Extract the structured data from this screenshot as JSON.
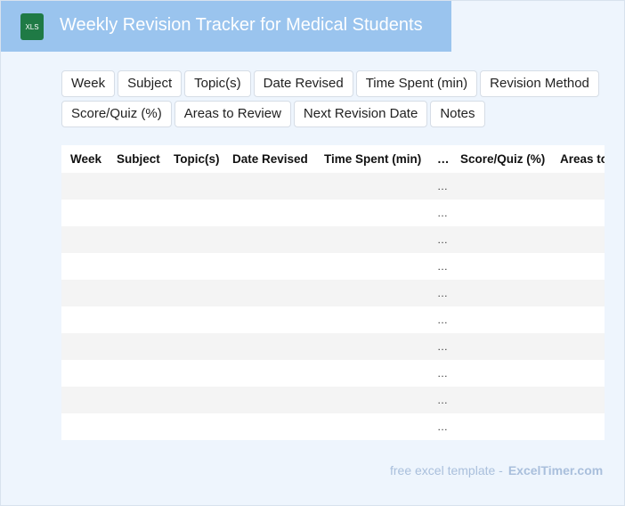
{
  "header": {
    "icon": "XLS",
    "title": "Weekly Revision Tracker for Medical Students"
  },
  "fields": [
    "Week",
    "Subject",
    "Topic(s)",
    "Date Revised",
    "Time Spent (min)",
    "Revision Method",
    "Score/Quiz (%)",
    "Areas to Review",
    "Next Revision Date",
    "Notes"
  ],
  "table": {
    "headers": [
      "Week",
      "Subject",
      "Topic(s)",
      "Date Revised",
      "Time Spent (min)",
      "…",
      "Score/Quiz (%)",
      "Areas to Review"
    ],
    "rows": [
      [
        "…"
      ],
      [
        "…"
      ],
      [
        "…"
      ],
      [
        "…"
      ],
      [
        "…"
      ],
      [
        "…"
      ],
      [
        "…"
      ],
      [
        "…"
      ],
      [
        "…"
      ],
      [
        "…"
      ]
    ]
  },
  "footer": {
    "text": "free excel template -",
    "brand": "ExcelTimer.com"
  }
}
